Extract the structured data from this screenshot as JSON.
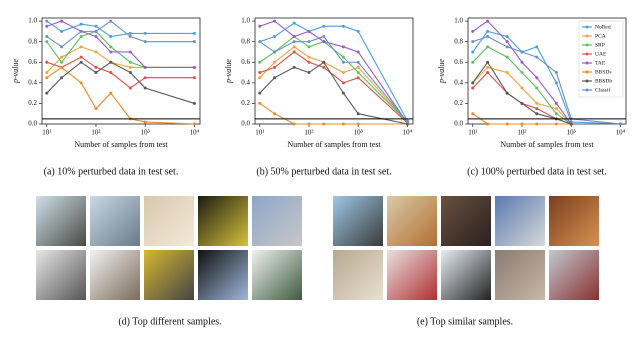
{
  "chart_data": [
    {
      "type": "line",
      "caption": "(a) 10% perturbed data in test set.",
      "x_label": "Number of samples from test",
      "y_label": "p-value",
      "x": [
        10,
        20,
        50,
        100,
        200,
        500,
        1000,
        10000
      ],
      "xlim": [
        8,
        13000
      ],
      "log_x": true,
      "xticks": [
        {
          "value": 10,
          "label": "10¹"
        },
        {
          "value": 100,
          "label": "10²"
        },
        {
          "value": 1000,
          "label": "10³"
        },
        {
          "value": 10000,
          "label": "10⁴"
        }
      ],
      "ylim": [
        0,
        1.03
      ],
      "yticks": [
        {
          "value": 0,
          "label": "0.0"
        },
        {
          "value": 0.2,
          "label": "0.2"
        },
        {
          "value": 0.4,
          "label": "0.4"
        },
        {
          "value": 0.6,
          "label": "0.6"
        },
        {
          "value": 0.8,
          "label": "0.8"
        },
        {
          "value": 1,
          "label": "1.0"
        }
      ],
      "hline": 0.05,
      "legend": false,
      "series": [
        {
          "name": "NoRed",
          "color": "#4a9fe0",
          "values": [
            1.0,
            0.9,
            0.97,
            0.95,
            0.85,
            0.88,
            0.88,
            0.88
          ]
        },
        {
          "name": "PCA",
          "color": "#f3a33c",
          "values": [
            0.5,
            0.65,
            0.75,
            0.7,
            0.6,
            0.55,
            0.55,
            0.55
          ]
        },
        {
          "name": "SRP",
          "color": "#5cc25c",
          "values": [
            0.8,
            0.6,
            0.85,
            0.9,
            0.75,
            0.6,
            0.55,
            0.55
          ]
        },
        {
          "name": "UAE",
          "color": "#e0504a",
          "values": [
            0.6,
            0.55,
            0.65,
            0.55,
            0.5,
            0.35,
            0.45,
            0.45
          ]
        },
        {
          "name": "TAE",
          "color": "#9b59d0",
          "values": [
            0.95,
            1.0,
            0.9,
            0.85,
            0.7,
            0.7,
            0.55,
            0.55
          ]
        },
        {
          "name": "BBSDs",
          "color": "#f08a24",
          "values": [
            0.45,
            0.55,
            0.4,
            0.15,
            0.3,
            0.05,
            0.02,
            0.0
          ]
        },
        {
          "name": "BBSDh",
          "color": "#5a5a5a",
          "values": [
            0.3,
            0.45,
            0.6,
            0.5,
            0.6,
            0.5,
            0.35,
            0.2
          ]
        },
        {
          "name": "Classif",
          "color": "#6a8fc8",
          "values": [
            0.85,
            0.75,
            0.9,
            0.9,
            1.0,
            0.85,
            0.8,
            0.8
          ]
        }
      ]
    },
    {
      "type": "line",
      "caption": "(b) 50% perturbed data in test set.",
      "x_label": "Number of samples from test",
      "y_label": "p-value",
      "x": [
        10,
        20,
        50,
        100,
        200,
        500,
        1000,
        10000
      ],
      "xlim": [
        8,
        13000
      ],
      "log_x": true,
      "xticks": [
        {
          "value": 10,
          "label": "10¹"
        },
        {
          "value": 100,
          "label": "10²"
        },
        {
          "value": 1000,
          "label": "10³"
        },
        {
          "value": 10000,
          "label": "10⁴"
        }
      ],
      "ylim": [
        0,
        1.03
      ],
      "yticks": [
        {
          "value": 0,
          "label": "0.0"
        },
        {
          "value": 0.2,
          "label": "0.2"
        },
        {
          "value": 0.4,
          "label": "0.4"
        },
        {
          "value": 0.6,
          "label": "0.6"
        },
        {
          "value": 0.8,
          "label": "0.8"
        },
        {
          "value": 1,
          "label": "1.0"
        }
      ],
      "hline": 0.05,
      "legend": false,
      "series": [
        {
          "name": "NoRed",
          "color": "#4a9fe0",
          "values": [
            0.8,
            0.85,
            0.98,
            0.9,
            0.95,
            0.95,
            0.9,
            0.03
          ]
        },
        {
          "name": "PCA",
          "color": "#f3a33c",
          "values": [
            0.45,
            0.6,
            0.75,
            0.65,
            0.6,
            0.5,
            0.55,
            0.02
          ]
        },
        {
          "name": "SRP",
          "color": "#5cc25c",
          "values": [
            0.6,
            0.7,
            0.85,
            0.75,
            0.8,
            0.65,
            0.5,
            0.02
          ]
        },
        {
          "name": "UAE",
          "color": "#e0504a",
          "values": [
            0.5,
            0.55,
            0.7,
            0.6,
            0.55,
            0.4,
            0.45,
            0.01
          ]
        },
        {
          "name": "TAE",
          "color": "#9b59d0",
          "values": [
            0.95,
            1.0,
            0.85,
            0.9,
            0.8,
            0.75,
            0.7,
            0.01
          ]
        },
        {
          "name": "BBSDs",
          "color": "#f08a24",
          "values": [
            0.2,
            0.1,
            0.0,
            0.0,
            0.0,
            0.0,
            0.0,
            0.0
          ]
        },
        {
          "name": "BBSDh",
          "color": "#5a5a5a",
          "values": [
            0.3,
            0.45,
            0.55,
            0.5,
            0.6,
            0.3,
            0.1,
            0.0
          ]
        },
        {
          "name": "Classif",
          "color": "#6a8fc8",
          "values": [
            0.8,
            0.7,
            0.8,
            0.8,
            0.85,
            0.6,
            0.6,
            0.02
          ]
        }
      ]
    },
    {
      "type": "line",
      "caption": "(c) 100% perturbed data in test set.",
      "x_label": "Number of samples from test",
      "y_label": "p-value",
      "x": [
        10,
        20,
        50,
        100,
        200,
        500,
        1000,
        10000
      ],
      "xlim": [
        8,
        13000
      ],
      "log_x": true,
      "xticks": [
        {
          "value": 10,
          "label": "10¹"
        },
        {
          "value": 100,
          "label": "10²"
        },
        {
          "value": 1000,
          "label": "10³"
        },
        {
          "value": 10000,
          "label": "10⁴"
        }
      ],
      "ylim": [
        0,
        1.03
      ],
      "yticks": [
        {
          "value": 0,
          "label": "0.0"
        },
        {
          "value": 0.2,
          "label": "0.2"
        },
        {
          "value": 0.4,
          "label": "0.4"
        },
        {
          "value": 0.6,
          "label": "0.6"
        },
        {
          "value": 0.8,
          "label": "0.8"
        },
        {
          "value": 1,
          "label": "1.0"
        }
      ],
      "hline": 0.05,
      "legend": true,
      "legend_loc": "upper right",
      "series": [
        {
          "name": "NoRed",
          "color": "#4a9fe0",
          "values": [
            0.7,
            0.9,
            0.85,
            0.7,
            0.75,
            0.4,
            0.02,
            0.0
          ]
        },
        {
          "name": "PCA",
          "color": "#f3a33c",
          "values": [
            0.4,
            0.55,
            0.5,
            0.35,
            0.2,
            0.15,
            0.0,
            0.0
          ]
        },
        {
          "name": "SRP",
          "color": "#5cc25c",
          "values": [
            0.6,
            0.75,
            0.65,
            0.5,
            0.35,
            0.1,
            0.0,
            0.0
          ]
        },
        {
          "name": "UAE",
          "color": "#e0504a",
          "values": [
            0.35,
            0.5,
            0.3,
            0.2,
            0.15,
            0.05,
            0.0,
            0.0
          ]
        },
        {
          "name": "TAE",
          "color": "#9b59d0",
          "values": [
            0.9,
            1.0,
            0.8,
            0.6,
            0.45,
            0.2,
            0.0,
            0.0
          ]
        },
        {
          "name": "BBSDs",
          "color": "#f08a24",
          "values": [
            0.1,
            0.0,
            0.0,
            0.0,
            0.0,
            0.0,
            0.0,
            0.0
          ]
        },
        {
          "name": "BBSDh",
          "color": "#5a5a5a",
          "values": [
            0.4,
            0.6,
            0.3,
            0.2,
            0.1,
            0.05,
            0.0,
            0.0
          ]
        },
        {
          "name": "Classif",
          "color": "#6a8fc8",
          "values": [
            0.8,
            0.85,
            0.75,
            0.7,
            0.65,
            0.5,
            0.05,
            0.0
          ]
        }
      ]
    }
  ],
  "panels": [
    {
      "caption": "(d) Top different samples."
    },
    {
      "caption": "(e) Top similar samples."
    }
  ]
}
